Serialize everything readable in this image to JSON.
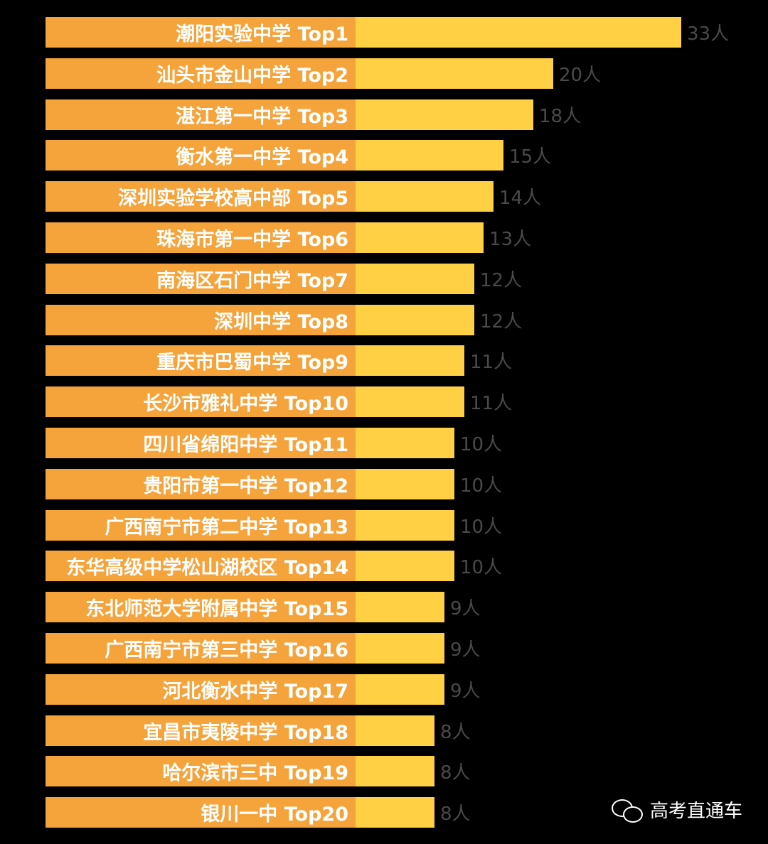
{
  "chart_data": {
    "type": "bar",
    "orientation": "horizontal",
    "categories": [
      "潮阳实验中学 Top1",
      "汕头市金山中学 Top2",
      "湛江第一中学 Top3",
      "衡水第一中学 Top4",
      "深圳实验学校高中部 Top5",
      "珠海市第一中学 Top6",
      "南海区石门中学 Top7",
      "深圳中学 Top8",
      "重庆市巴蜀中学 Top9",
      "长沙市雅礼中学 Top10",
      "四川省绵阳中学 Top11",
      "贵阳市第一中学 Top12",
      "广西南宁市第二中学 Top13",
      "东华高级中学松山湖校区 Top14",
      "东北师范大学附属中学 Top15",
      "广西南宁市第三中学 Top16",
      "河北衡水中学 Top17",
      "宜昌市夷陵中学 Top18",
      "哈尔滨市三中 Top19",
      "银川一中 Top20"
    ],
    "values": [
      33,
      20,
      18,
      15,
      14,
      13,
      12,
      12,
      11,
      11,
      10,
      10,
      10,
      10,
      9,
      9,
      9,
      8,
      8,
      8
    ],
    "value_labels": [
      "33人",
      "20人",
      "18人",
      "15人",
      "14人",
      "13人",
      "12人",
      "12人",
      "11人",
      "11人",
      "10人",
      "10人",
      "10人",
      "10人",
      "9人",
      "9人",
      "9人",
      "8人",
      "8人",
      "8人"
    ],
    "unit": "人",
    "legend": "none",
    "grid": false
  },
  "colors": {
    "label_segment": "#f5a33b",
    "bar_fill": "#ffd043",
    "value_text": "#4a4a4a",
    "background": "#000000"
  },
  "watermark": {
    "icon": "wechat-icon",
    "text": "高考直通车"
  }
}
